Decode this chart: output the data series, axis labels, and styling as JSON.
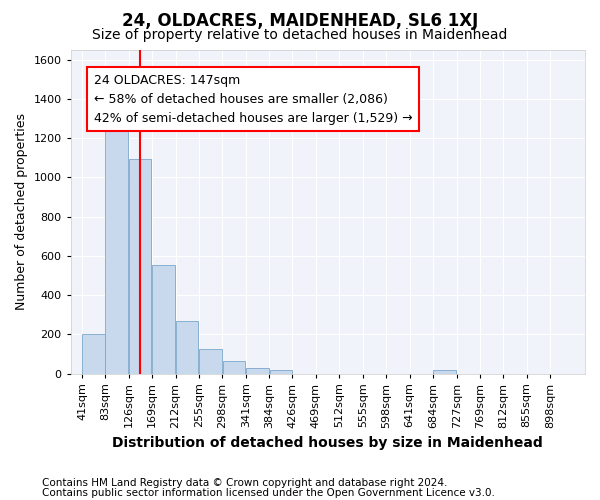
{
  "title": "24, OLDACRES, MAIDENHEAD, SL6 1XJ",
  "subtitle": "Size of property relative to detached houses in Maidenhead",
  "xlabel": "Distribution of detached houses by size in Maidenhead",
  "ylabel": "Number of detached properties",
  "footnote1": "Contains HM Land Registry data © Crown copyright and database right 2024.",
  "footnote2": "Contains public sector information licensed under the Open Government Licence v3.0.",
  "annotation_line1": "24 OLDACRES: 147sqm",
  "annotation_line2": "← 58% of detached houses are smaller (2,086)",
  "annotation_line3": "42% of semi-detached houses are larger (1,529) →",
  "bar_color": "#c8d8ed",
  "bar_edge_color": "#7ba8cc",
  "red_line_x": 147,
  "categories": [
    "41sqm",
    "83sqm",
    "126sqm",
    "169sqm",
    "212sqm",
    "255sqm",
    "298sqm",
    "341sqm",
    "384sqm",
    "426sqm",
    "469sqm",
    "512sqm",
    "555sqm",
    "598sqm",
    "641sqm",
    "684sqm",
    "727sqm",
    "769sqm",
    "812sqm",
    "855sqm",
    "898sqm"
  ],
  "bin_edges": [
    41,
    83,
    126,
    169,
    212,
    255,
    298,
    341,
    384,
    426,
    469,
    512,
    555,
    598,
    641,
    684,
    727,
    769,
    812,
    855,
    898,
    941
  ],
  "values": [
    200,
    1275,
    1095,
    555,
    270,
    125,
    65,
    30,
    20,
    0,
    0,
    0,
    0,
    0,
    0,
    20,
    0,
    0,
    0,
    0,
    0
  ],
  "ylim": [
    0,
    1650
  ],
  "yticks": [
    0,
    200,
    400,
    600,
    800,
    1000,
    1200,
    1400,
    1600
  ],
  "background_color": "#ffffff",
  "plot_bg_color": "#f0f4fa",
  "title_fontsize": 12,
  "subtitle_fontsize": 10,
  "annotation_fontsize": 9,
  "ylabel_fontsize": 9,
  "xlabel_fontsize": 10,
  "footnote_fontsize": 7.5,
  "tick_fontsize": 8
}
